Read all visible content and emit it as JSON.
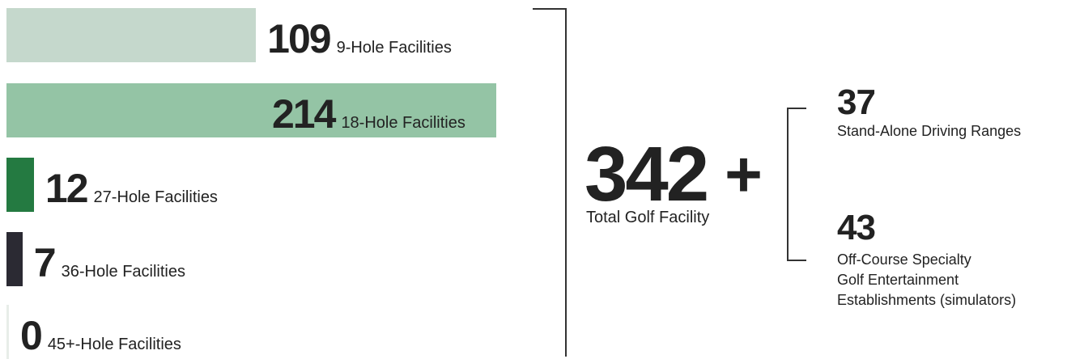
{
  "chart_data": {
    "type": "bar",
    "orientation": "horizontal",
    "categories": [
      "9-Hole Facilities",
      "18-Hole Facilities",
      "27-Hole Facilities",
      "36-Hole Facilities",
      "45+-Hole Facilities"
    ],
    "values": [
      109,
      214,
      12,
      7,
      0
    ],
    "colors": [
      "#c5d8cc",
      "#94c4a5",
      "#247a41",
      "#2b2a33",
      "#e8ede9"
    ]
  },
  "summary": {
    "total_value": "342",
    "plus_sign": "+",
    "total_label": "Total Golf Facility",
    "items": [
      {
        "value": "37",
        "lines": [
          "Stand-Alone Driving Ranges"
        ]
      },
      {
        "value": "43",
        "lines": [
          "Off-Course Specialty",
          "Golf Entertainment",
          "Establishments (simulators)"
        ]
      }
    ]
  }
}
